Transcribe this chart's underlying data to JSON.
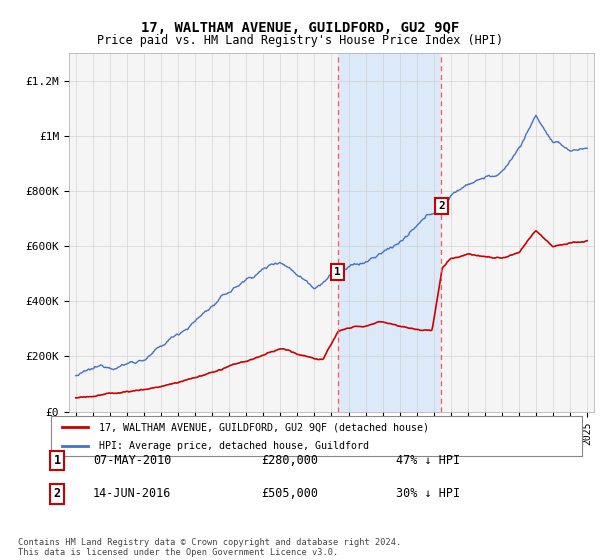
{
  "title": "17, WALTHAM AVENUE, GUILDFORD, GU2 9QF",
  "subtitle": "Price paid vs. HM Land Registry's House Price Index (HPI)",
  "ylabel_ticks": [
    "£0",
    "£200K",
    "£400K",
    "£600K",
    "£800K",
    "£1M",
    "£1.2M"
  ],
  "ytick_values": [
    0,
    200000,
    400000,
    600000,
    800000,
    1000000,
    1200000
  ],
  "ylim": [
    0,
    1300000
  ],
  "xlim_start": 1994.6,
  "xlim_end": 2025.4,
  "sale1_year": 2010.36,
  "sale1_price": 280000,
  "sale1_label": "07-MAY-2010",
  "sale1_price_label": "£280,000",
  "sale1_hpi_label": "47% ↓ HPI",
  "sale2_year": 2016.45,
  "sale2_price": 505000,
  "sale2_label": "14-JUN-2016",
  "sale2_price_label": "£505,000",
  "sale2_hpi_label": "30% ↓ HPI",
  "hpi_line_color": "#4472C4",
  "price_line_color": "#CC0000",
  "shade_color": "#DCE9F8",
  "vline_color": "#FF5555",
  "marker_box_color": "#CC0000",
  "legend_label_red": "17, WALTHAM AVENUE, GUILDFORD, GU2 9QF (detached house)",
  "legend_label_blue": "HPI: Average price, detached house, Guildford",
  "footnote": "Contains HM Land Registry data © Crown copyright and database right 2024.\nThis data is licensed under the Open Government Licence v3.0.",
  "plot_bg": "#F5F5F5",
  "fig_bg": "#FFFFFF"
}
